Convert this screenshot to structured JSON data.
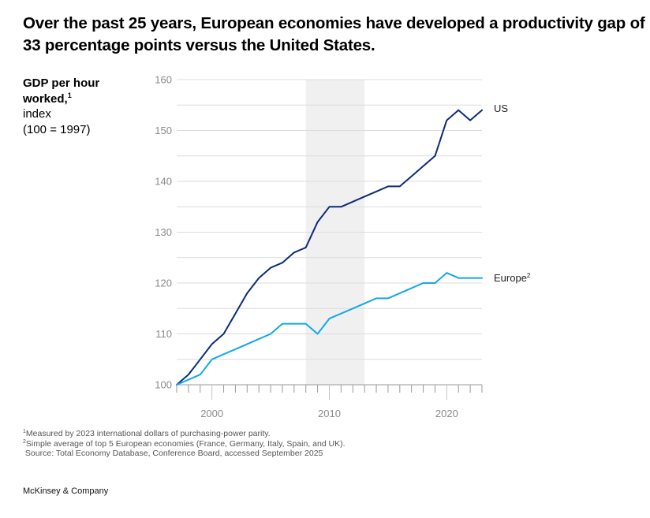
{
  "title": "Over the past 25 years, European economies have developed a productivity gap of 33 percentage points versus the United States.",
  "ylabel": {
    "line1": "GDP per hour",
    "line2": "worked,",
    "line2_sup": "1",
    "line3": "index",
    "line4": "(100 = 1997)"
  },
  "footnotes": {
    "note1_sup": "1",
    "note1": "Measured by 2023 international dollars of purchasing-power parity.",
    "note2_sup": "2",
    "note2": "Simple average of top 5 European economies (France, Germany, Italy, Spain, and UK).",
    "source": "Source: Total Economy Database, Conference Board, accessed September 2025"
  },
  "brand": "McKinsey & Company",
  "chart_data": {
    "type": "line",
    "title": "Over the past 25 years, European economies have developed a productivity gap of 33 percentage points versus the United States.",
    "xlabel": "",
    "ylabel": "GDP per hour worked, index (100 = 1997)",
    "x": [
      1997,
      1998,
      1999,
      2000,
      2001,
      2002,
      2003,
      2004,
      2005,
      2006,
      2007,
      2008,
      2009,
      2010,
      2011,
      2012,
      2013,
      2014,
      2015,
      2016,
      2017,
      2018,
      2019,
      2020,
      2021,
      2022,
      2023
    ],
    "xlim": [
      1997,
      2023
    ],
    "ylim": [
      100,
      160
    ],
    "yticks": [
      100,
      110,
      120,
      130,
      140,
      150,
      160
    ],
    "ytick_labels": [
      "100",
      "110",
      "120",
      "130",
      "140",
      "150",
      "160"
    ],
    "xticks_major": [
      2000,
      2010,
      2020
    ],
    "xtick_labels": [
      "2000",
      "2010",
      "2020"
    ],
    "grid": "horizontal every 5 units",
    "shaded_region": {
      "from": 2008,
      "to": 2013,
      "color": "#f0f0f0"
    },
    "series": [
      {
        "name": "US",
        "label": "US",
        "label_sup": "",
        "color": "#0d2a7a",
        "values": [
          100,
          102,
          105,
          108,
          110,
          114,
          118,
          121,
          123,
          124,
          126,
          127,
          132,
          135,
          135,
          136,
          137,
          138,
          139,
          139,
          141,
          143,
          145,
          152,
          154,
          152,
          154
        ]
      },
      {
        "name": "Europe",
        "label": "Europe",
        "label_sup": "2",
        "color": "#12a8ea",
        "values": [
          100,
          101,
          102,
          105,
          106,
          107,
          108,
          109,
          110,
          112,
          112,
          112,
          110,
          113,
          114,
          115,
          116,
          117,
          117,
          118,
          119,
          120,
          120,
          122,
          121,
          121,
          121
        ]
      }
    ],
    "legend": "direct labels at right end of lines"
  }
}
